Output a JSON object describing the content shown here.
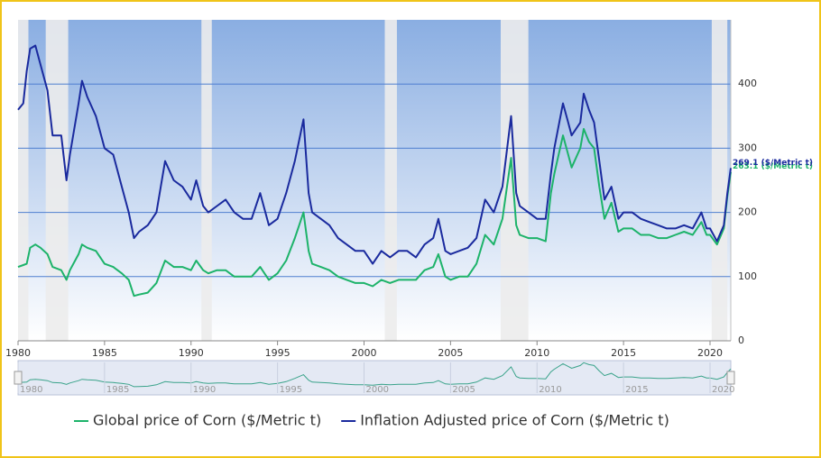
{
  "chart_data": {
    "type": "line",
    "x": [
      1980.0,
      1980.3,
      1980.5,
      1980.7,
      1981.0,
      1981.3,
      1981.7,
      1982.0,
      1982.5,
      1982.8,
      1983.0,
      1983.5,
      1983.7,
      1984.0,
      1984.5,
      1985.0,
      1985.5,
      1986.0,
      1986.4,
      1986.7,
      1987.0,
      1987.5,
      1988.0,
      1988.5,
      1989.0,
      1989.5,
      1990.0,
      1990.3,
      1990.7,
      1991.0,
      1991.5,
      1992.0,
      1992.5,
      1993.0,
      1993.5,
      1994.0,
      1994.5,
      1995.0,
      1995.5,
      1996.0,
      1996.5,
      1996.8,
      1997.0,
      1997.5,
      1998.0,
      1998.5,
      1999.0,
      1999.5,
      2000.0,
      2000.5,
      2001.0,
      2001.5,
      2002.0,
      2002.5,
      2003.0,
      2003.5,
      2004.0,
      2004.3,
      2004.7,
      2005.0,
      2005.5,
      2006.0,
      2006.5,
      2007.0,
      2007.5,
      2008.0,
      2008.5,
      2008.8,
      2009.0,
      2009.5,
      2010.0,
      2010.5,
      2010.8,
      2011.0,
      2011.5,
      2011.8,
      2012.0,
      2012.5,
      2012.7,
      2013.0,
      2013.3,
      2013.6,
      2013.9,
      2014.3,
      2014.7,
      2015.0,
      2015.5,
      2016.0,
      2016.5,
      2017.0,
      2017.5,
      2018.0,
      2018.5,
      2019.0,
      2019.5,
      2019.8,
      2020.0,
      2020.4,
      2020.8,
      2021.0,
      2021.2
    ],
    "series": [
      {
        "name": "Global price of Corn ($/Metric t)",
        "color": "#1db36a",
        "end_label": "263.1 ($/Metric t)",
        "values": [
          115,
          118,
          120,
          145,
          150,
          145,
          135,
          115,
          110,
          95,
          110,
          135,
          150,
          145,
          140,
          120,
          115,
          105,
          95,
          70,
          72,
          75,
          90,
          125,
          115,
          115,
          110,
          125,
          110,
          105,
          110,
          110,
          100,
          100,
          100,
          115,
          95,
          105,
          125,
          160,
          200,
          140,
          120,
          115,
          110,
          100,
          95,
          90,
          90,
          85,
          95,
          90,
          95,
          95,
          95,
          110,
          115,
          135,
          100,
          95,
          100,
          100,
          120,
          165,
          150,
          190,
          285,
          180,
          165,
          160,
          160,
          155,
          230,
          260,
          320,
          290,
          270,
          300,
          330,
          310,
          300,
          240,
          190,
          215,
          170,
          175,
          175,
          165,
          165,
          160,
          160,
          165,
          170,
          165,
          185,
          165,
          165,
          150,
          175,
          225,
          263.1
        ]
      },
      {
        "name": "Inflation Adjusted price of Corn ($/Metric t)",
        "color": "#1a2a9e",
        "end_label": "269.1 ($/Metric t)",
        "values": [
          360,
          370,
          420,
          455,
          460,
          430,
          390,
          320,
          320,
          250,
          290,
          370,
          405,
          380,
          350,
          300,
          290,
          240,
          200,
          160,
          170,
          180,
          200,
          280,
          250,
          240,
          220,
          250,
          210,
          200,
          210,
          220,
          200,
          190,
          190,
          230,
          180,
          190,
          230,
          280,
          345,
          230,
          200,
          190,
          180,
          160,
          150,
          140,
          140,
          120,
          140,
          130,
          140,
          140,
          130,
          150,
          160,
          190,
          140,
          135,
          140,
          145,
          160,
          220,
          200,
          240,
          350,
          230,
          210,
          200,
          190,
          190,
          260,
          300,
          370,
          340,
          320,
          340,
          385,
          360,
          340,
          280,
          220,
          240,
          190,
          200,
          200,
          190,
          185,
          180,
          175,
          175,
          180,
          175,
          200,
          175,
          175,
          155,
          180,
          230,
          269.1
        ]
      }
    ],
    "shaded_periods": [
      [
        1980.0,
        1980.6
      ],
      [
        1981.6,
        1982.9
      ],
      [
        1990.6,
        1991.2
      ],
      [
        2001.2,
        2001.9
      ],
      [
        2007.9,
        2009.5
      ],
      [
        2020.1,
        2021.0
      ]
    ],
    "xlim": [
      1980,
      2021.2
    ],
    "xticks": [
      1980,
      1985,
      1990,
      1995,
      2000,
      2005,
      2010,
      2015,
      2020
    ],
    "ylim": [
      0,
      500
    ],
    "yticks": [
      0,
      100,
      200,
      300,
      400
    ],
    "grid": true,
    "legend": "bottom"
  }
}
